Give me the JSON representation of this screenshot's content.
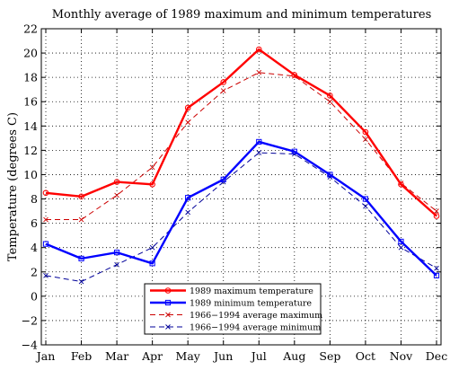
{
  "chart_data": {
    "type": "line",
    "title": "Monthly average of 1989 maximum and minimum temperatures",
    "xlabel": "",
    "ylabel": "Temperature (degrees C)",
    "categories": [
      "Jan",
      "Feb",
      "Mar",
      "Apr",
      "May",
      "Jun",
      "Jul",
      "Aug",
      "Sep",
      "Oct",
      "Nov",
      "Dec"
    ],
    "ylim": [
      -4,
      22
    ],
    "yticks": [
      "−4",
      "−2",
      "0",
      "2",
      "4",
      "6",
      "8",
      "10",
      "12",
      "14",
      "16",
      "18",
      "20",
      "22"
    ],
    "ytick_values": [
      -4,
      -2,
      0,
      2,
      4,
      6,
      8,
      10,
      12,
      14,
      16,
      18,
      20,
      22
    ],
    "grid": true,
    "legend_position": "bottom-center",
    "series": [
      {
        "name": "1989 maximum temperature",
        "values": [
          8.5,
          8.2,
          9.4,
          9.2,
          15.5,
          17.6,
          20.3,
          18.2,
          16.5,
          13.5,
          9.2,
          6.6
        ],
        "color": "#ff0000",
        "style": "solid",
        "marker": "circle",
        "width": 2.4
      },
      {
        "name": "1989 minimum temperature",
        "values": [
          4.3,
          3.1,
          3.6,
          2.7,
          8.1,
          9.6,
          12.7,
          11.9,
          10.0,
          8.0,
          4.5,
          1.7
        ],
        "color": "#0000ff",
        "style": "solid",
        "marker": "square",
        "width": 2.4
      },
      {
        "name": "1966−1994 average maximum",
        "values": [
          6.3,
          6.3,
          8.3,
          10.6,
          14.3,
          16.9,
          18.4,
          18.1,
          16.0,
          12.9,
          9.3,
          7.0
        ],
        "color": "#cc0000",
        "style": "dashed",
        "marker": "x",
        "width": 1
      },
      {
        "name": "1966−1994 average minimum",
        "values": [
          1.7,
          1.2,
          2.6,
          4.0,
          6.9,
          9.4,
          11.8,
          11.7,
          9.8,
          7.4,
          4.0,
          2.3
        ],
        "color": "#000099",
        "style": "dashed",
        "marker": "x",
        "width": 1
      }
    ]
  }
}
